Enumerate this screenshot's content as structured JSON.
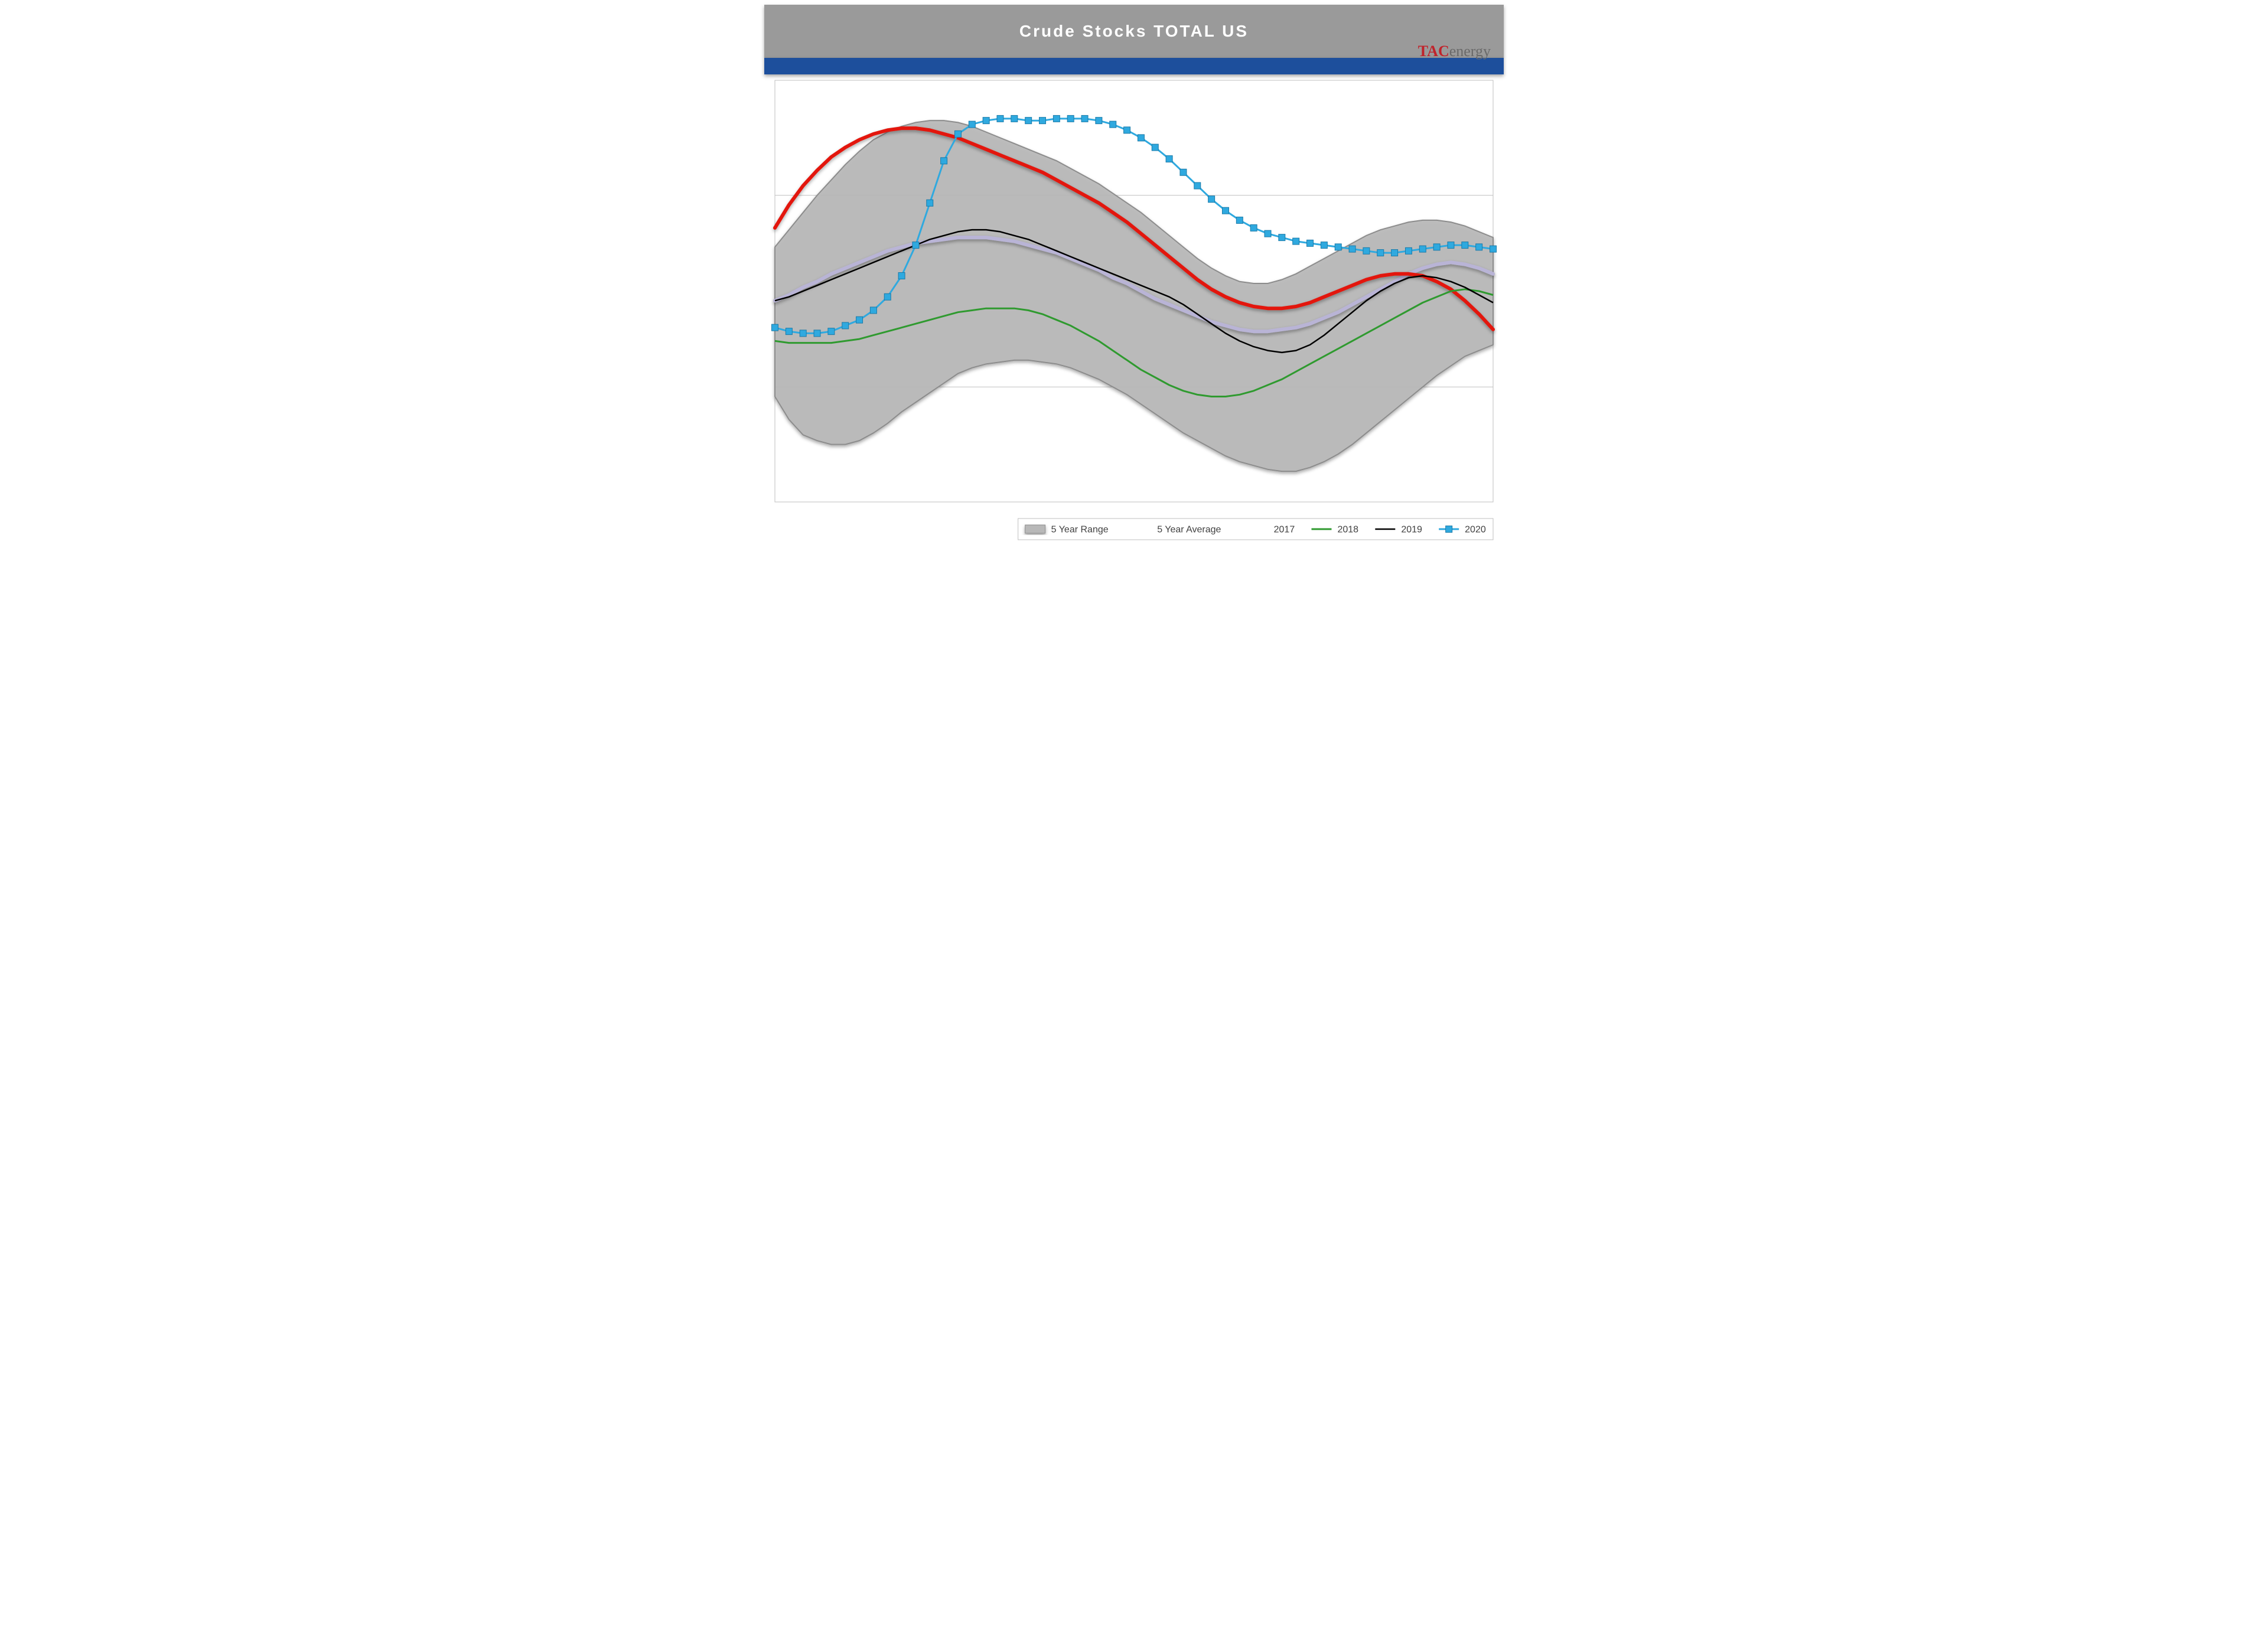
{
  "title": "Crude Stocks TOTAL US",
  "logo": {
    "red": "TAC",
    "grey": "energy"
  },
  "chart": {
    "type": "line-band",
    "n_weeks": 52,
    "ylim": [
      340,
      560
    ],
    "grid_y": [
      400,
      500
    ],
    "background_color": "#ffffff",
    "grid_color": "#bfbfbf",
    "axis_color": "#bfbfbf",
    "drop_shadow": "rgba(0,0,0,0.35)",
    "series": {
      "range_low": [
        395,
        383,
        375,
        372,
        370,
        370,
        372,
        376,
        381,
        387,
        392,
        397,
        402,
        407,
        410,
        412,
        413,
        414,
        414,
        413,
        412,
        410,
        407,
        404,
        400,
        396,
        391,
        386,
        381,
        376,
        372,
        368,
        364,
        361,
        359,
        357,
        356,
        356,
        358,
        361,
        365,
        370,
        376,
        382,
        388,
        394,
        400,
        406,
        411,
        416,
        419,
        422
      ],
      "range_high": [
        473,
        482,
        491,
        500,
        508,
        516,
        523,
        529,
        533,
        536,
        538,
        539,
        539,
        538,
        536,
        533,
        530,
        527,
        524,
        521,
        518,
        514,
        510,
        506,
        501,
        496,
        491,
        485,
        479,
        473,
        467,
        462,
        458,
        455,
        454,
        454,
        456,
        459,
        463,
        467,
        471,
        475,
        479,
        482,
        484,
        486,
        487,
        487,
        486,
        484,
        481,
        478
      ],
      "avg": [
        445,
        448,
        452,
        455,
        459,
        462,
        465,
        468,
        471,
        473,
        475,
        476,
        477,
        478,
        478,
        478,
        477,
        476,
        474,
        472,
        470,
        467,
        464,
        461,
        457,
        454,
        450,
        446,
        443,
        440,
        437,
        434,
        432,
        430,
        429,
        429,
        430,
        431,
        433,
        436,
        439,
        443,
        447,
        451,
        455,
        459,
        462,
        464,
        465,
        464,
        462,
        459
      ],
      "y2017": [
        483,
        495,
        505,
        513,
        520,
        525,
        529,
        532,
        534,
        535,
        535,
        534,
        532,
        530,
        527,
        524,
        521,
        518,
        515,
        512,
        508,
        504,
        500,
        496,
        491,
        486,
        480,
        474,
        468,
        462,
        456,
        451,
        447,
        444,
        442,
        441,
        441,
        442,
        444,
        447,
        450,
        453,
        456,
        458,
        459,
        459,
        458,
        455,
        451,
        445,
        438,
        430
      ],
      "y2018": [
        424,
        423,
        423,
        423,
        423,
        424,
        425,
        427,
        429,
        431,
        433,
        435,
        437,
        439,
        440,
        441,
        441,
        441,
        440,
        438,
        435,
        432,
        428,
        424,
        419,
        414,
        409,
        405,
        401,
        398,
        396,
        395,
        395,
        396,
        398,
        401,
        404,
        408,
        412,
        416,
        420,
        424,
        428,
        432,
        436,
        440,
        444,
        447,
        450,
        451,
        450,
        448
      ],
      "y2019": [
        445,
        447,
        450,
        453,
        456,
        459,
        462,
        465,
        468,
        471,
        474,
        477,
        479,
        481,
        482,
        482,
        481,
        479,
        477,
        474,
        471,
        468,
        465,
        462,
        459,
        456,
        453,
        450,
        447,
        443,
        438,
        433,
        428,
        424,
        421,
        419,
        418,
        419,
        422,
        427,
        433,
        439,
        445,
        450,
        454,
        457,
        458,
        457,
        455,
        452,
        448,
        444
      ],
      "y2020": [
        431,
        429,
        428,
        428,
        429,
        432,
        435,
        440,
        447,
        458,
        474,
        496,
        518,
        532,
        537,
        539,
        540,
        540,
        539,
        539,
        540,
        540,
        540,
        539,
        537,
        534,
        530,
        525,
        519,
        512,
        505,
        498,
        492,
        487,
        483,
        480,
        478,
        476,
        475,
        474,
        473,
        472,
        471,
        470,
        470,
        471,
        472,
        473,
        474,
        474,
        473,
        472
      ]
    },
    "colors": {
      "range_fill": "#b8b8b8",
      "range_stroke": "#8c8c8c",
      "avg": "#b9b4d6",
      "y2017": "#e3150a",
      "y2018": "#2f9a2f",
      "y2019": "#000000",
      "y2020_line": "#2fa9df",
      "y2020_marker_fill": "#2fa9df",
      "y2020_marker_stroke": "#1a7aa8"
    },
    "line_widths": {
      "range_stroke": 2,
      "avg": 6,
      "y2017": 6,
      "y2018": 3,
      "y2019": 2.5,
      "y2020": 3
    },
    "marker": {
      "size": 11,
      "shape": "square"
    },
    "legend": {
      "items": [
        {
          "key": "range",
          "label": "5 Year Range"
        },
        {
          "key": "avg",
          "label": "5 Year Average"
        },
        {
          "key": "y2017",
          "label": "2017"
        },
        {
          "key": "y2018",
          "label": "2018"
        },
        {
          "key": "y2019",
          "label": "2019"
        },
        {
          "key": "y2020",
          "label": "2020"
        }
      ],
      "font_size": 16,
      "text_color": "#404040",
      "box_stroke": "#bfbfbf"
    }
  }
}
